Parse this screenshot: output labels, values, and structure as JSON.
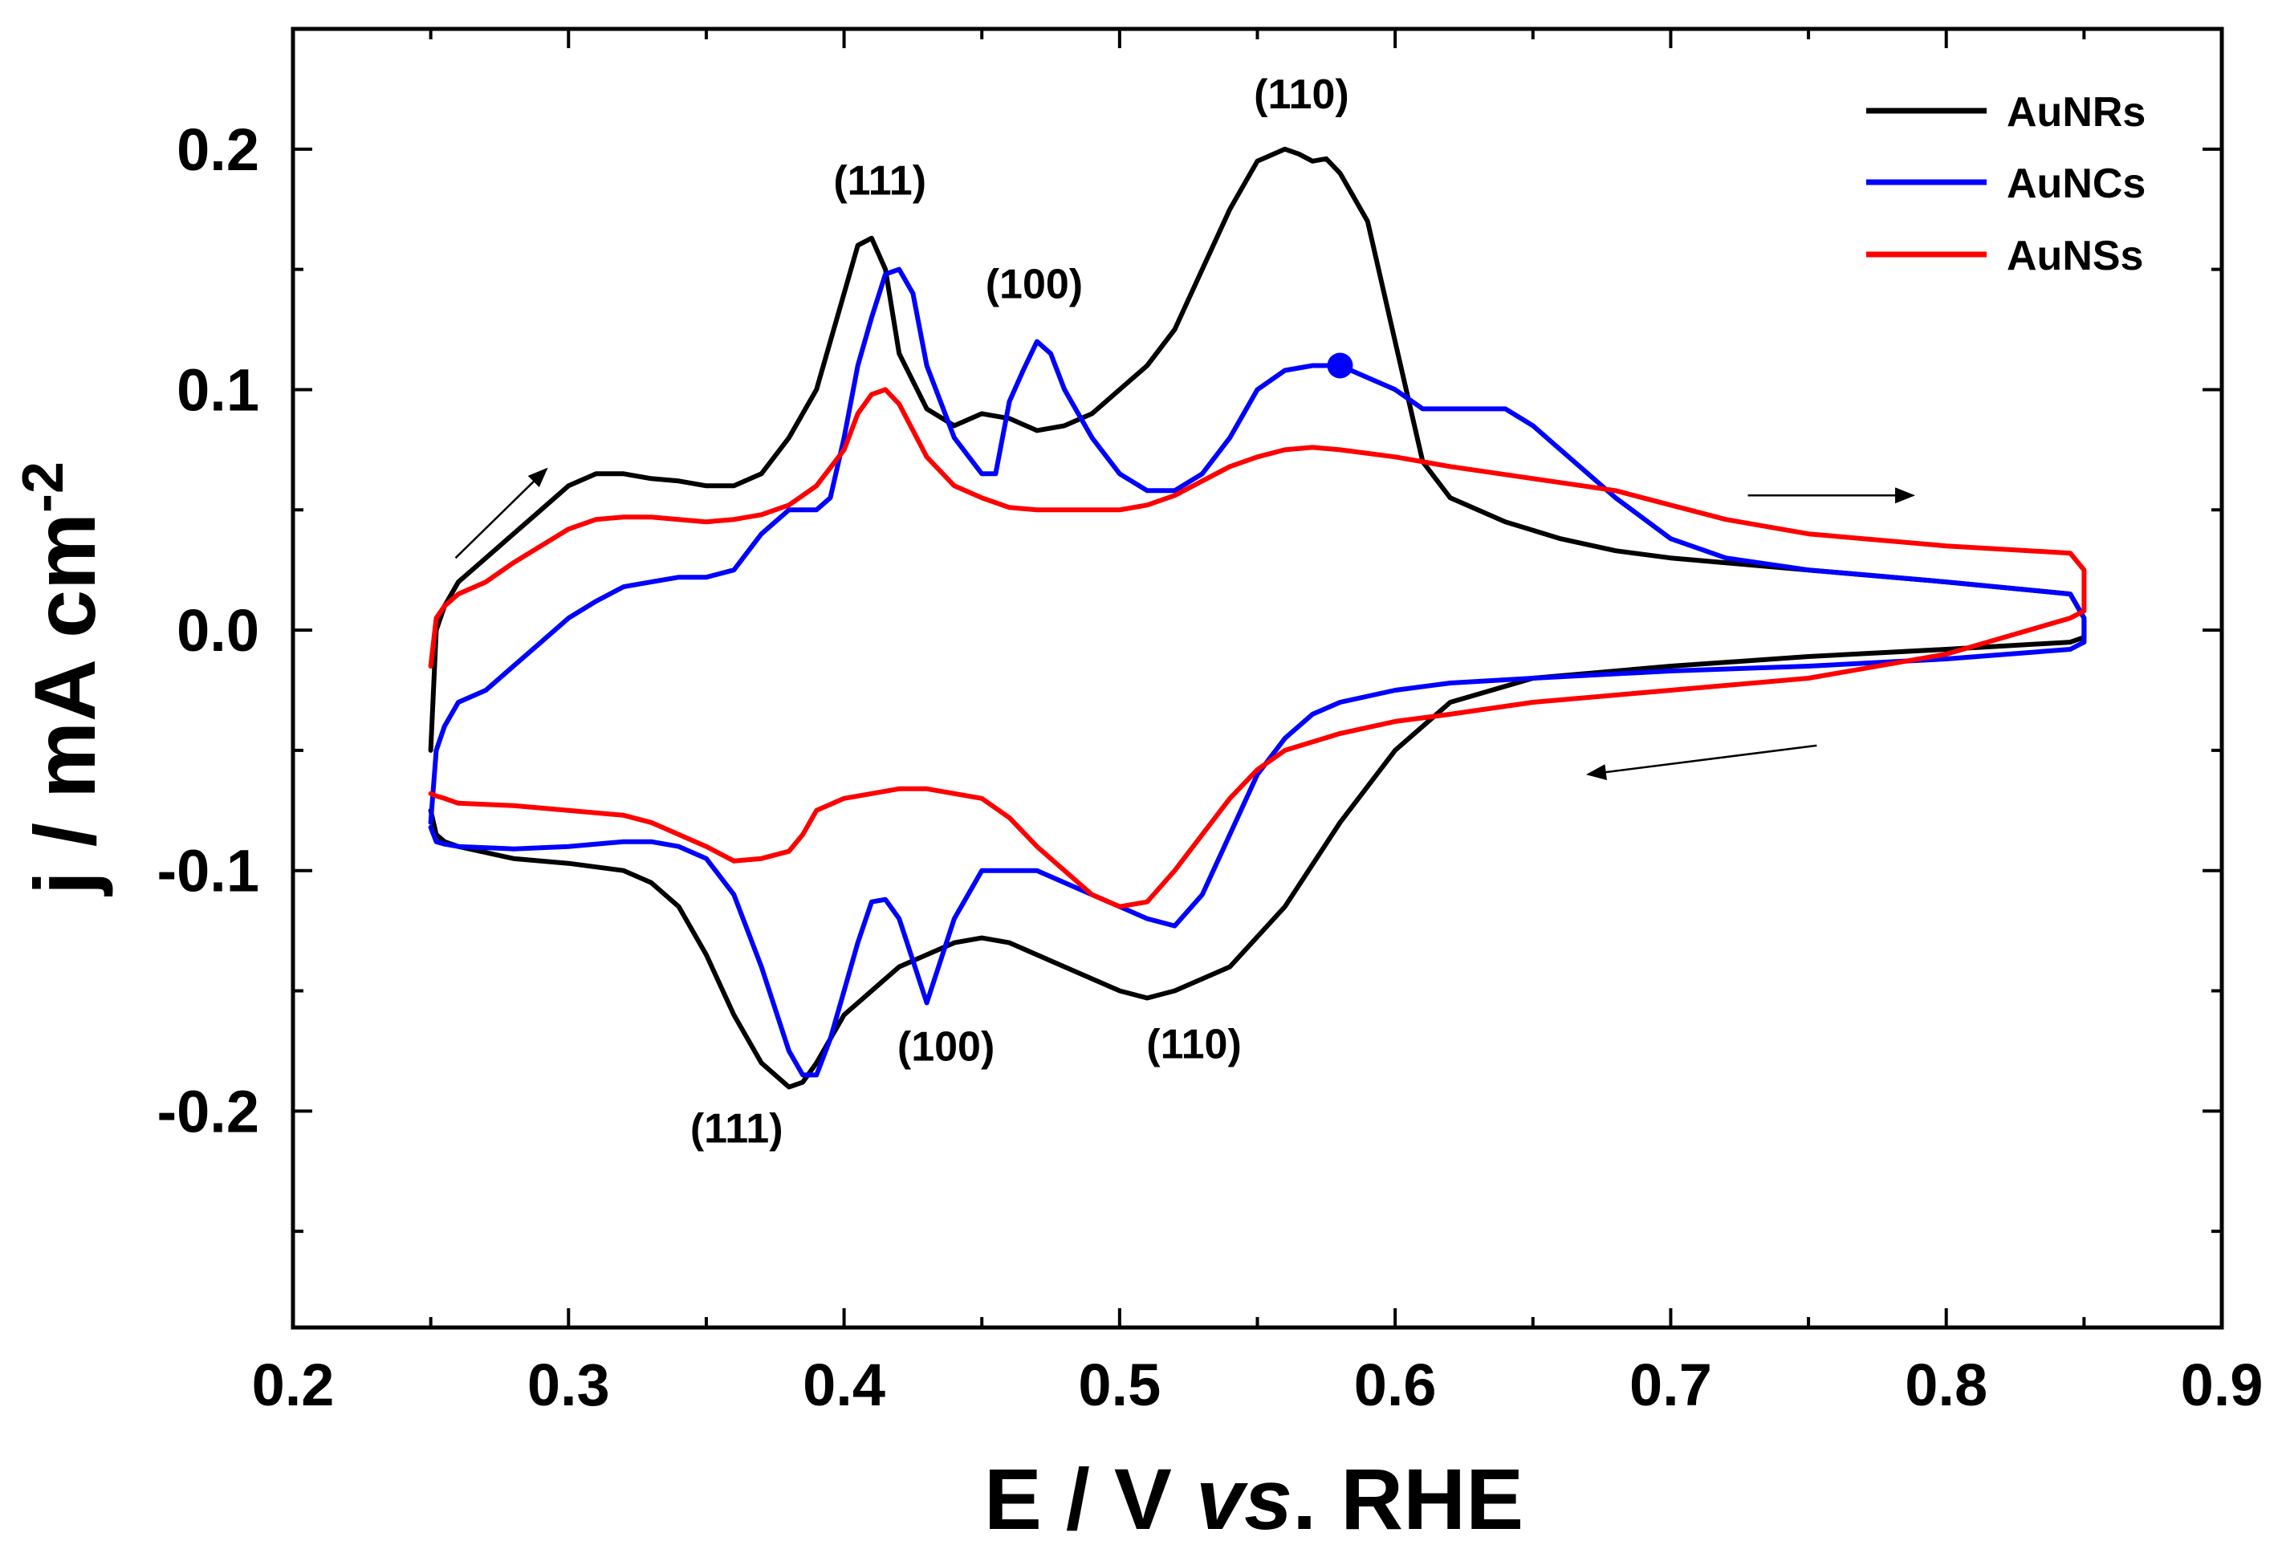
{
  "chart_data": {
    "type": "line",
    "title": "",
    "xlabel_parts": [
      {
        "text": "E / V ",
        "style": "normal"
      },
      {
        "text": "vs",
        "style": "italic"
      },
      {
        "text": ". RHE",
        "style": "normal"
      }
    ],
    "ylabel_main": "j / mA cm",
    "ylabel_sup": "-2",
    "xlim": [
      0.2,
      0.9
    ],
    "ylim": [
      -0.29,
      0.25
    ],
    "xticks": [
      0.2,
      0.3,
      0.4,
      0.5,
      0.6,
      0.7,
      0.8,
      0.9
    ],
    "xtick_labels": [
      "0.2",
      "0.3",
      "0.4",
      "0.5",
      "0.6",
      "0.7",
      "0.8",
      "0.9"
    ],
    "yticks": [
      -0.2,
      -0.1,
      0.0,
      0.1,
      0.2
    ],
    "ytick_labels": [
      "-0.2",
      "-0.1",
      "0.0",
      "0.1",
      "0.2"
    ],
    "grid": false,
    "legend_position": "top-right",
    "series": [
      {
        "name": "AuNRs",
        "color": "#000000",
        "x": [
          0.25,
          0.252,
          0.255,
          0.26,
          0.27,
          0.28,
          0.29,
          0.3,
          0.31,
          0.32,
          0.33,
          0.34,
          0.35,
          0.36,
          0.37,
          0.38,
          0.39,
          0.4,
          0.405,
          0.41,
          0.415,
          0.42,
          0.43,
          0.44,
          0.45,
          0.46,
          0.47,
          0.48,
          0.49,
          0.5,
          0.51,
          0.52,
          0.53,
          0.54,
          0.55,
          0.56,
          0.565,
          0.57,
          0.575,
          0.58,
          0.59,
          0.6,
          0.61,
          0.62,
          0.64,
          0.66,
          0.68,
          0.7,
          0.75,
          0.8,
          0.845,
          0.85,
          0.85,
          0.845,
          0.8,
          0.75,
          0.7,
          0.65,
          0.62,
          0.6,
          0.58,
          0.56,
          0.54,
          0.52,
          0.51,
          0.5,
          0.48,
          0.46,
          0.45,
          0.44,
          0.42,
          0.4,
          0.39,
          0.385,
          0.38,
          0.37,
          0.36,
          0.35,
          0.34,
          0.33,
          0.32,
          0.3,
          0.28,
          0.26,
          0.255,
          0.252,
          0.25
        ],
        "y": [
          -0.05,
          0.0,
          0.01,
          0.02,
          0.03,
          0.04,
          0.05,
          0.06,
          0.065,
          0.065,
          0.063,
          0.062,
          0.06,
          0.06,
          0.065,
          0.08,
          0.1,
          0.14,
          0.16,
          0.163,
          0.15,
          0.115,
          0.092,
          0.085,
          0.09,
          0.088,
          0.083,
          0.085,
          0.09,
          0.1,
          0.11,
          0.125,
          0.15,
          0.175,
          0.195,
          0.2,
          0.198,
          0.195,
          0.196,
          0.19,
          0.17,
          0.12,
          0.07,
          0.055,
          0.045,
          0.038,
          0.033,
          0.03,
          0.025,
          0.02,
          0.015,
          0.005,
          -0.003,
          -0.005,
          -0.008,
          -0.011,
          -0.015,
          -0.02,
          -0.03,
          -0.05,
          -0.08,
          -0.115,
          -0.14,
          -0.15,
          -0.153,
          -0.15,
          -0.14,
          -0.13,
          -0.128,
          -0.13,
          -0.14,
          -0.16,
          -0.18,
          -0.188,
          -0.19,
          -0.18,
          -0.16,
          -0.135,
          -0.115,
          -0.105,
          -0.1,
          -0.097,
          -0.095,
          -0.09,
          -0.088,
          -0.085,
          -0.075
        ]
      },
      {
        "name": "AuNCs",
        "color": "#0000ff",
        "x": [
          0.25,
          0.252,
          0.255,
          0.26,
          0.27,
          0.28,
          0.29,
          0.3,
          0.31,
          0.32,
          0.33,
          0.34,
          0.35,
          0.36,
          0.37,
          0.38,
          0.39,
          0.395,
          0.4,
          0.405,
          0.41,
          0.415,
          0.42,
          0.425,
          0.43,
          0.44,
          0.45,
          0.455,
          0.46,
          0.465,
          0.47,
          0.475,
          0.48,
          0.49,
          0.5,
          0.51,
          0.52,
          0.53,
          0.54,
          0.55,
          0.56,
          0.57,
          0.58,
          0.59,
          0.6,
          0.61,
          0.62,
          0.63,
          0.64,
          0.65,
          0.66,
          0.68,
          0.7,
          0.72,
          0.75,
          0.8,
          0.845,
          0.85,
          0.85,
          0.845,
          0.8,
          0.75,
          0.7,
          0.65,
          0.62,
          0.6,
          0.58,
          0.57,
          0.56,
          0.55,
          0.54,
          0.53,
          0.52,
          0.51,
          0.5,
          0.49,
          0.48,
          0.47,
          0.46,
          0.45,
          0.44,
          0.43,
          0.42,
          0.415,
          0.41,
          0.405,
          0.4,
          0.395,
          0.39,
          0.385,
          0.38,
          0.37,
          0.36,
          0.35,
          0.34,
          0.33,
          0.32,
          0.3,
          0.28,
          0.26,
          0.255,
          0.252,
          0.25
        ],
        "y": [
          -0.08,
          -0.05,
          -0.04,
          -0.03,
          -0.025,
          -0.015,
          -0.005,
          0.005,
          0.012,
          0.018,
          0.02,
          0.022,
          0.022,
          0.025,
          0.04,
          0.05,
          0.05,
          0.055,
          0.08,
          0.11,
          0.13,
          0.148,
          0.15,
          0.14,
          0.11,
          0.08,
          0.065,
          0.065,
          0.095,
          0.108,
          0.12,
          0.115,
          0.1,
          0.08,
          0.065,
          0.058,
          0.058,
          0.065,
          0.08,
          0.1,
          0.108,
          0.11,
          0.11,
          0.105,
          0.1,
          0.092,
          0.092,
          0.092,
          0.092,
          0.085,
          0.075,
          0.055,
          0.038,
          0.03,
          0.025,
          0.02,
          0.015,
          0.005,
          -0.005,
          -0.008,
          -0.012,
          -0.015,
          -0.017,
          -0.02,
          -0.022,
          -0.025,
          -0.03,
          -0.035,
          -0.045,
          -0.06,
          -0.085,
          -0.11,
          -0.123,
          -0.12,
          -0.115,
          -0.11,
          -0.105,
          -0.1,
          -0.1,
          -0.1,
          -0.12,
          -0.155,
          -0.12,
          -0.112,
          -0.113,
          -0.13,
          -0.15,
          -0.17,
          -0.185,
          -0.185,
          -0.175,
          -0.14,
          -0.11,
          -0.095,
          -0.09,
          -0.088,
          -0.088,
          -0.09,
          -0.091,
          -0.09,
          -0.089,
          -0.088,
          -0.082
        ]
      },
      {
        "name": "AuNSs",
        "color": "#ff0000",
        "x": [
          0.25,
          0.252,
          0.255,
          0.26,
          0.27,
          0.28,
          0.29,
          0.3,
          0.31,
          0.32,
          0.33,
          0.34,
          0.35,
          0.36,
          0.37,
          0.38,
          0.39,
          0.4,
          0.405,
          0.41,
          0.415,
          0.42,
          0.43,
          0.44,
          0.45,
          0.46,
          0.47,
          0.48,
          0.49,
          0.5,
          0.51,
          0.52,
          0.53,
          0.54,
          0.55,
          0.56,
          0.57,
          0.58,
          0.6,
          0.62,
          0.65,
          0.68,
          0.7,
          0.72,
          0.75,
          0.8,
          0.845,
          0.85,
          0.85,
          0.845,
          0.8,
          0.75,
          0.7,
          0.65,
          0.62,
          0.6,
          0.58,
          0.56,
          0.55,
          0.54,
          0.53,
          0.52,
          0.51,
          0.5,
          0.49,
          0.48,
          0.47,
          0.46,
          0.45,
          0.44,
          0.43,
          0.42,
          0.41,
          0.4,
          0.39,
          0.385,
          0.38,
          0.37,
          0.36,
          0.35,
          0.34,
          0.33,
          0.32,
          0.3,
          0.28,
          0.26,
          0.255,
          0.252,
          0.25
        ],
        "y": [
          -0.015,
          0.005,
          0.01,
          0.015,
          0.02,
          0.028,
          0.035,
          0.042,
          0.046,
          0.047,
          0.047,
          0.046,
          0.045,
          0.046,
          0.048,
          0.052,
          0.06,
          0.075,
          0.09,
          0.098,
          0.1,
          0.094,
          0.072,
          0.06,
          0.055,
          0.051,
          0.05,
          0.05,
          0.05,
          0.05,
          0.052,
          0.056,
          0.062,
          0.068,
          0.072,
          0.075,
          0.076,
          0.075,
          0.072,
          0.068,
          0.063,
          0.058,
          0.052,
          0.046,
          0.04,
          0.035,
          0.032,
          0.025,
          0.008,
          0.005,
          -0.01,
          -0.02,
          -0.025,
          -0.03,
          -0.035,
          -0.038,
          -0.043,
          -0.05,
          -0.058,
          -0.07,
          -0.085,
          -0.1,
          -0.113,
          -0.115,
          -0.11,
          -0.1,
          -0.09,
          -0.078,
          -0.07,
          -0.068,
          -0.066,
          -0.066,
          -0.068,
          -0.07,
          -0.075,
          -0.085,
          -0.092,
          -0.095,
          -0.096,
          -0.09,
          -0.085,
          -0.08,
          -0.077,
          -0.075,
          -0.073,
          -0.072,
          -0.07,
          -0.069,
          -0.068
        ]
      }
    ],
    "highlight_point": {
      "x": 0.58,
      "y": 0.11,
      "color": "#0000ff"
    },
    "peak_labels": [
      {
        "text": "(111)",
        "x": 0.413,
        "y": 0.181
      },
      {
        "text": "(100)",
        "x": 0.469,
        "y": 0.138
      },
      {
        "text": "(110)",
        "x": 0.566,
        "y": 0.217
      },
      {
        "text": "(111)",
        "x": 0.361,
        "y": -0.213
      },
      {
        "text": "(100)",
        "x": 0.437,
        "y": -0.179
      },
      {
        "text": "(110)",
        "x": 0.527,
        "y": -0.178
      }
    ],
    "direction_arrows": [
      {
        "x1": 0.259,
        "y1": 0.03,
        "x2": 0.292,
        "y2": 0.067
      },
      {
        "x1": 0.728,
        "y1": 0.056,
        "x2": 0.788,
        "y2": 0.056
      },
      {
        "x1": 0.753,
        "y1": -0.048,
        "x2": 0.67,
        "y2": -0.06
      }
    ]
  }
}
